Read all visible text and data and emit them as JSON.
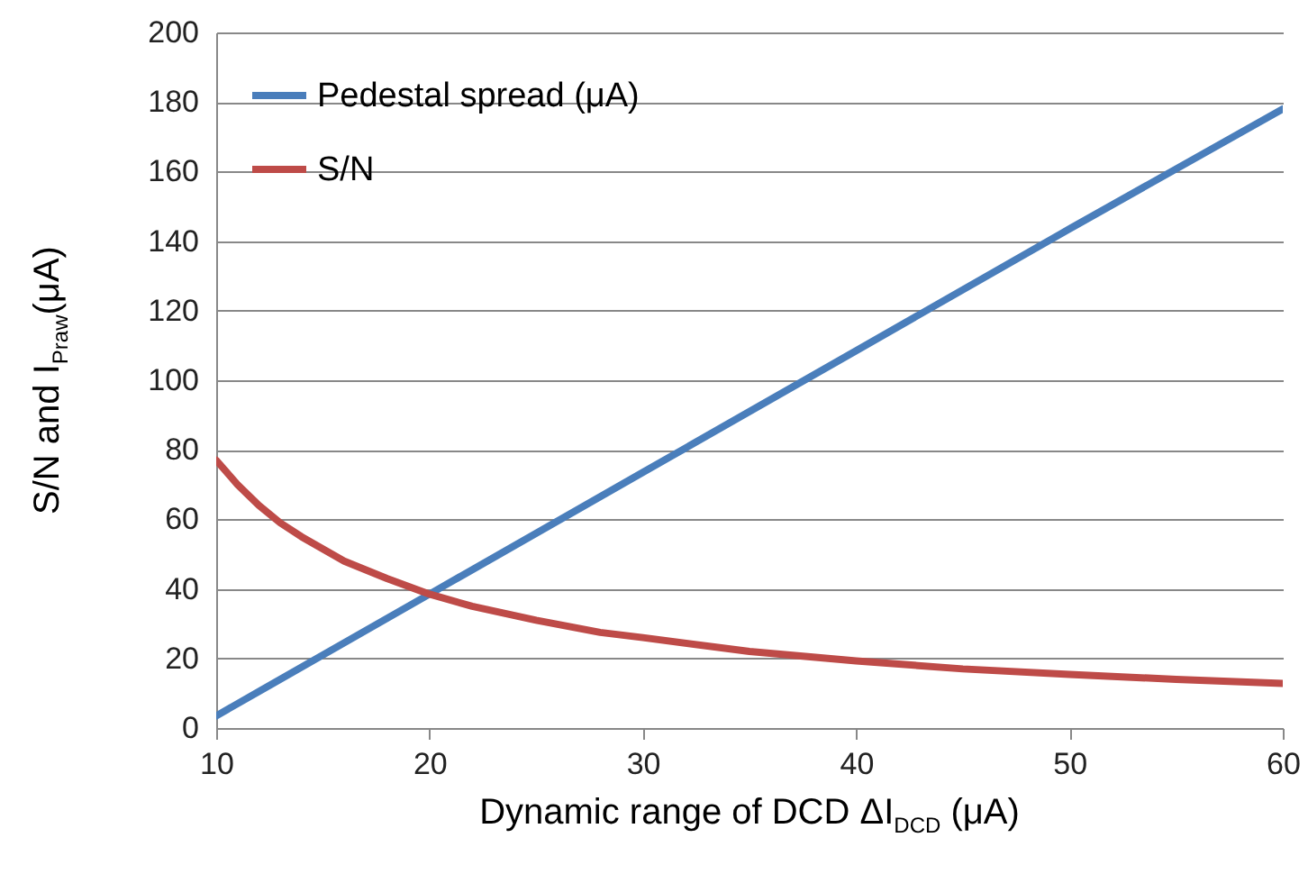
{
  "chart_data": {
    "type": "line",
    "xlabel": "Dynamic range of DCD ΔI$_{DCD}$ (μA)",
    "ylabel": "S/N and I$_{Praw}$(μA)",
    "series": [
      {
        "name": "Pedestal spread (μA)",
        "color": "#4a7ebb",
        "x": [
          10,
          20,
          30,
          40,
          50,
          60
        ],
        "values": [
          3.5,
          38.5,
          73.5,
          108.5,
          143.5,
          178
        ]
      },
      {
        "name": "S/N",
        "color": "#be4b48",
        "x": [
          10,
          11,
          12,
          13,
          14,
          16,
          18,
          20,
          22,
          25,
          28,
          30,
          35,
          40,
          45,
          50,
          55,
          60
        ],
        "values": [
          77,
          70,
          64,
          59,
          55,
          48,
          43,
          38.5,
          35,
          31,
          27.5,
          26,
          22,
          19.3,
          17,
          15.4,
          14,
          12.8
        ]
      }
    ],
    "xlim": [
      10,
      60
    ],
    "xticks": [
      10,
      20,
      30,
      40,
      50,
      60
    ],
    "ylim": [
      0,
      200
    ],
    "yticks": [
      0,
      20,
      40,
      60,
      80,
      100,
      120,
      140,
      160,
      180,
      200
    ],
    "grid": "y",
    "legend": "top left"
  }
}
